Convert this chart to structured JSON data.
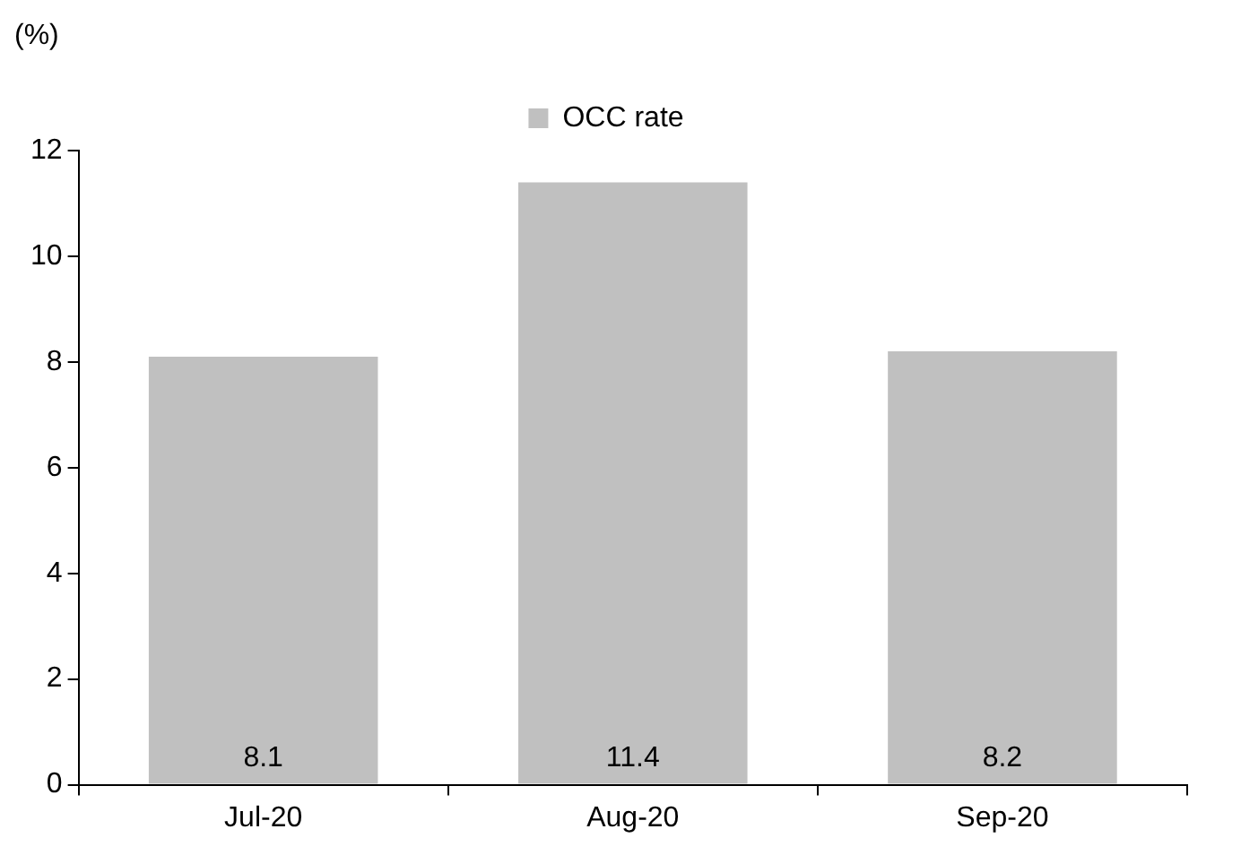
{
  "chart_data": {
    "type": "bar",
    "ylabel": "(%)",
    "categories": [
      "Jul-20",
      "Aug-20",
      "Sep-20"
    ],
    "series": [
      {
        "name": "OCC rate",
        "color": "#c0c0c0",
        "values": [
          8.1,
          11.4,
          8.2
        ]
      }
    ],
    "ylim": [
      0,
      12
    ],
    "yticks": [
      0,
      2,
      4,
      6,
      8,
      10,
      12
    ],
    "grid": false,
    "legend": "top",
    "data_labels": true
  }
}
